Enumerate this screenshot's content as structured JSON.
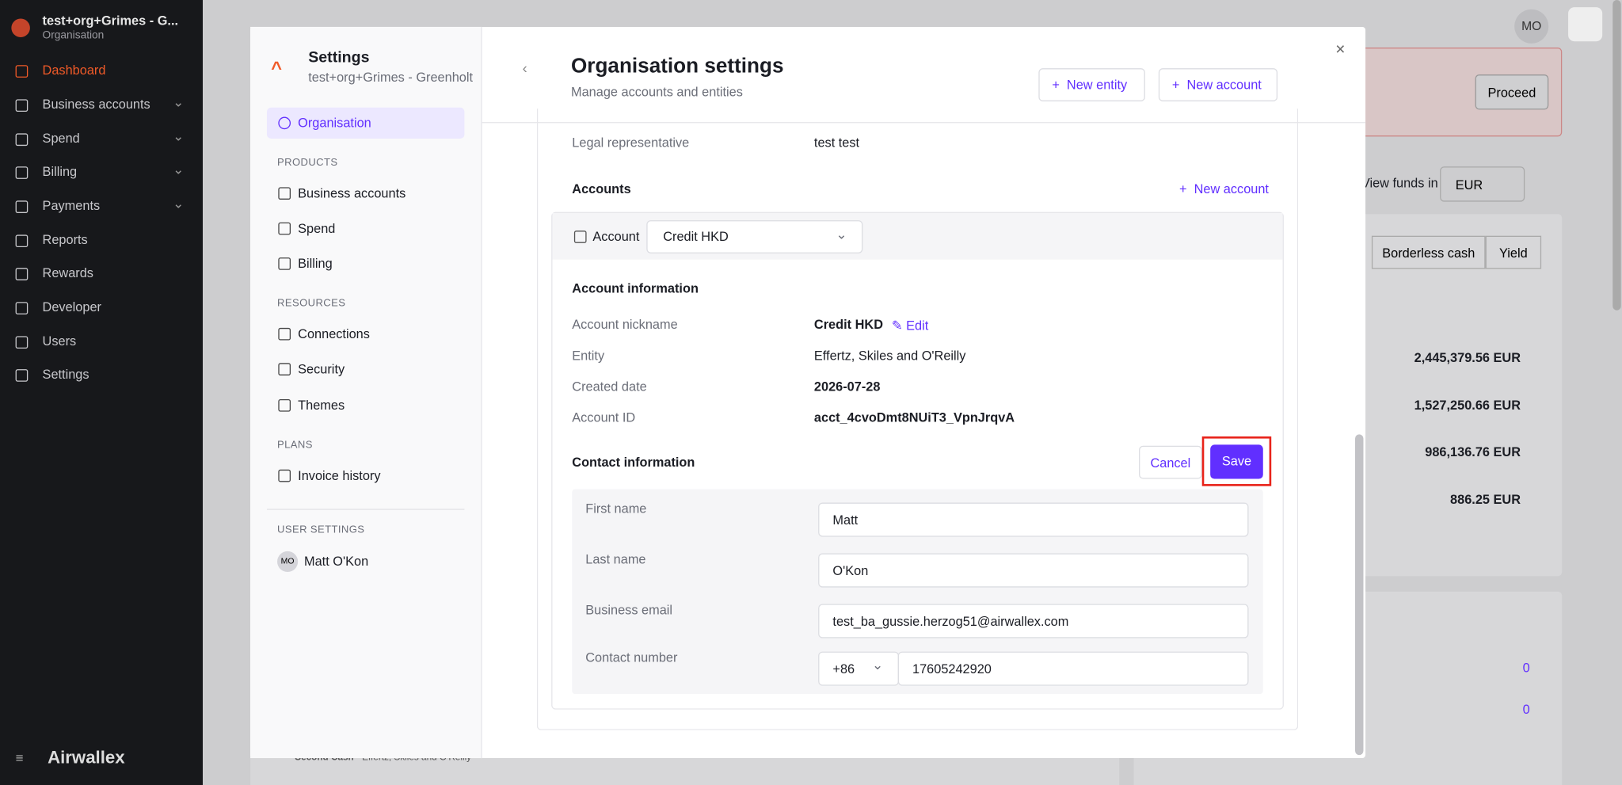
{
  "sidebar": {
    "org_name": "test+org+Grimes - G...",
    "org_type": "Organisation",
    "nav": [
      "Dashboard",
      "Business accounts",
      "Spend",
      "Billing",
      "Payments",
      "Reports",
      "Rewards",
      "Developer",
      "Users",
      "Settings"
    ],
    "logo": "Airwallex"
  },
  "background": {
    "avatar": "MO",
    "proceed": "Proceed",
    "view_funds": "View funds in",
    "currency": "EUR",
    "tabs": [
      "Borderless cash",
      "Yield"
    ],
    "amounts": [
      "2,445,379.56 EUR",
      "1,527,250.66 EUR",
      "986,136.76 EUR",
      "886.25 EUR"
    ],
    "counts": [
      "0",
      "0"
    ],
    "footer_name": "Second Cash",
    "footer_entity": "Effertz, Skiles and O'Reilly"
  },
  "modal": {
    "nav": {
      "title": "Settings",
      "subtitle": "test+org+Grimes - Greenholt",
      "active": "Organisation",
      "products_heading": "PRODUCTS",
      "products": [
        "Business accounts",
        "Spend",
        "Billing"
      ],
      "resources_heading": "RESOURCES",
      "resources": [
        "Connections",
        "Security",
        "Themes"
      ],
      "plans_heading": "PLANS",
      "plans": [
        "Invoice history"
      ],
      "user_heading": "USER SETTINGS",
      "user_initials": "MO",
      "user_name": "Matt O'Kon"
    },
    "header": {
      "title": "Organisation settings",
      "subtitle": "Manage accounts and entities",
      "new_entity": "New entity",
      "new_account": "New account"
    },
    "legal": {
      "label": "Legal representative",
      "value": "test test"
    },
    "accounts": {
      "heading": "Accounts",
      "new_account": "New account",
      "account_label": "Account",
      "selected": "Credit HKD"
    },
    "account_info": {
      "heading": "Account information",
      "edit": "Edit",
      "rows": [
        {
          "label": "Account nickname",
          "value": "Credit HKD"
        },
        {
          "label": "Entity",
          "value": "Effertz, Skiles and O'Reilly"
        },
        {
          "label": "Created date",
          "value": "2026-07-28"
        },
        {
          "label": "Account ID",
          "value": "acct_4cvoDmt8NUiT3_VpnJrqvA"
        }
      ]
    },
    "contact": {
      "heading": "Contact information",
      "cancel": "Cancel",
      "save": "Save",
      "fields": [
        {
          "label": "First name",
          "value": "Matt"
        },
        {
          "label": "Last name",
          "value": "O'Kon"
        },
        {
          "label": "Business email",
          "value": "test_ba_gussie.herzog51@airwallex.com"
        },
        {
          "label": "Contact number",
          "code": "+86",
          "value": "17605242920"
        }
      ]
    }
  }
}
